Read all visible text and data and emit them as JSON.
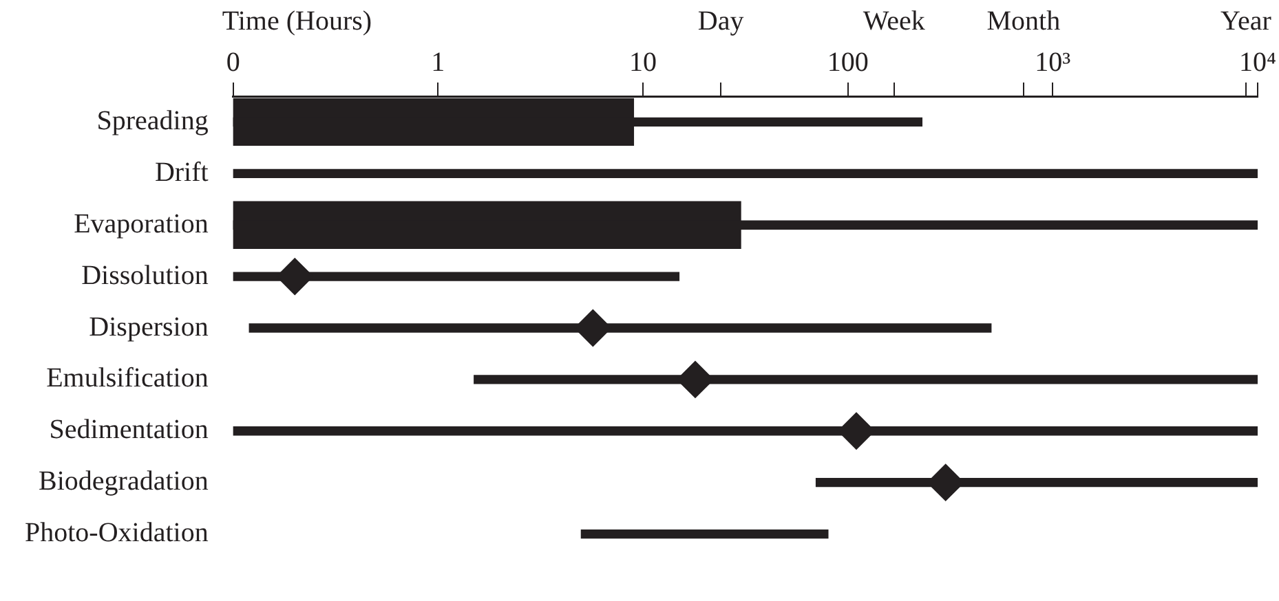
{
  "chart_data": {
    "type": "bar",
    "orientation": "horizontal",
    "xlabel": "Time (Hours)",
    "categories": [
      "Spreading",
      "Drift",
      "Evaporation",
      "Dissolution",
      "Dispersion",
      "Emulsification",
      "Sedimentation",
      "Biodegradation",
      "Photo-Oxidation"
    ],
    "series": [
      {
        "color": "#231f20",
        "base": [
          0.1,
          0.1,
          0.1,
          0.1,
          0.12,
          1.5,
          0.1,
          70,
          5
        ],
        "values": [
          229.9,
          9999.9,
          9999.9,
          14.9,
          499.88,
          9998.5,
          9999.9,
          9930,
          75
        ]
      },
      {
        "color": "#231f20",
        "base": [
          0.1,
          null,
          0.1,
          null,
          null,
          null,
          null,
          null,
          null
        ],
        "values": [
          8.9,
          null,
          29.9,
          null,
          null,
          null,
          null,
          null,
          null
        ]
      },
      {
        "type": "scatter",
        "color": "#231f20",
        "marker": "diamond",
        "values": [
          null,
          null,
          null,
          0.2,
          5.7,
          18,
          110,
          300,
          null
        ]
      }
    ],
    "log": "x",
    "xlim": [
      0.1,
      10000
    ],
    "xticks": [
      {
        "value": 0.1,
        "label": "0"
      },
      1,
      10,
      {
        "value": 24,
        "label": null
      },
      100,
      {
        "value": 168,
        "label": null
      },
      {
        "value": 720,
        "label": null
      },
      {
        "value": 1000,
        "label": "10³"
      },
      {
        "value": 8760,
        "label": null
      },
      {
        "value": 10000,
        "label": "10⁴"
      }
    ],
    "annotations": [
      "Day",
      "Week",
      "Month",
      "Year"
    ],
    "grid": false,
    "legend": false
  }
}
